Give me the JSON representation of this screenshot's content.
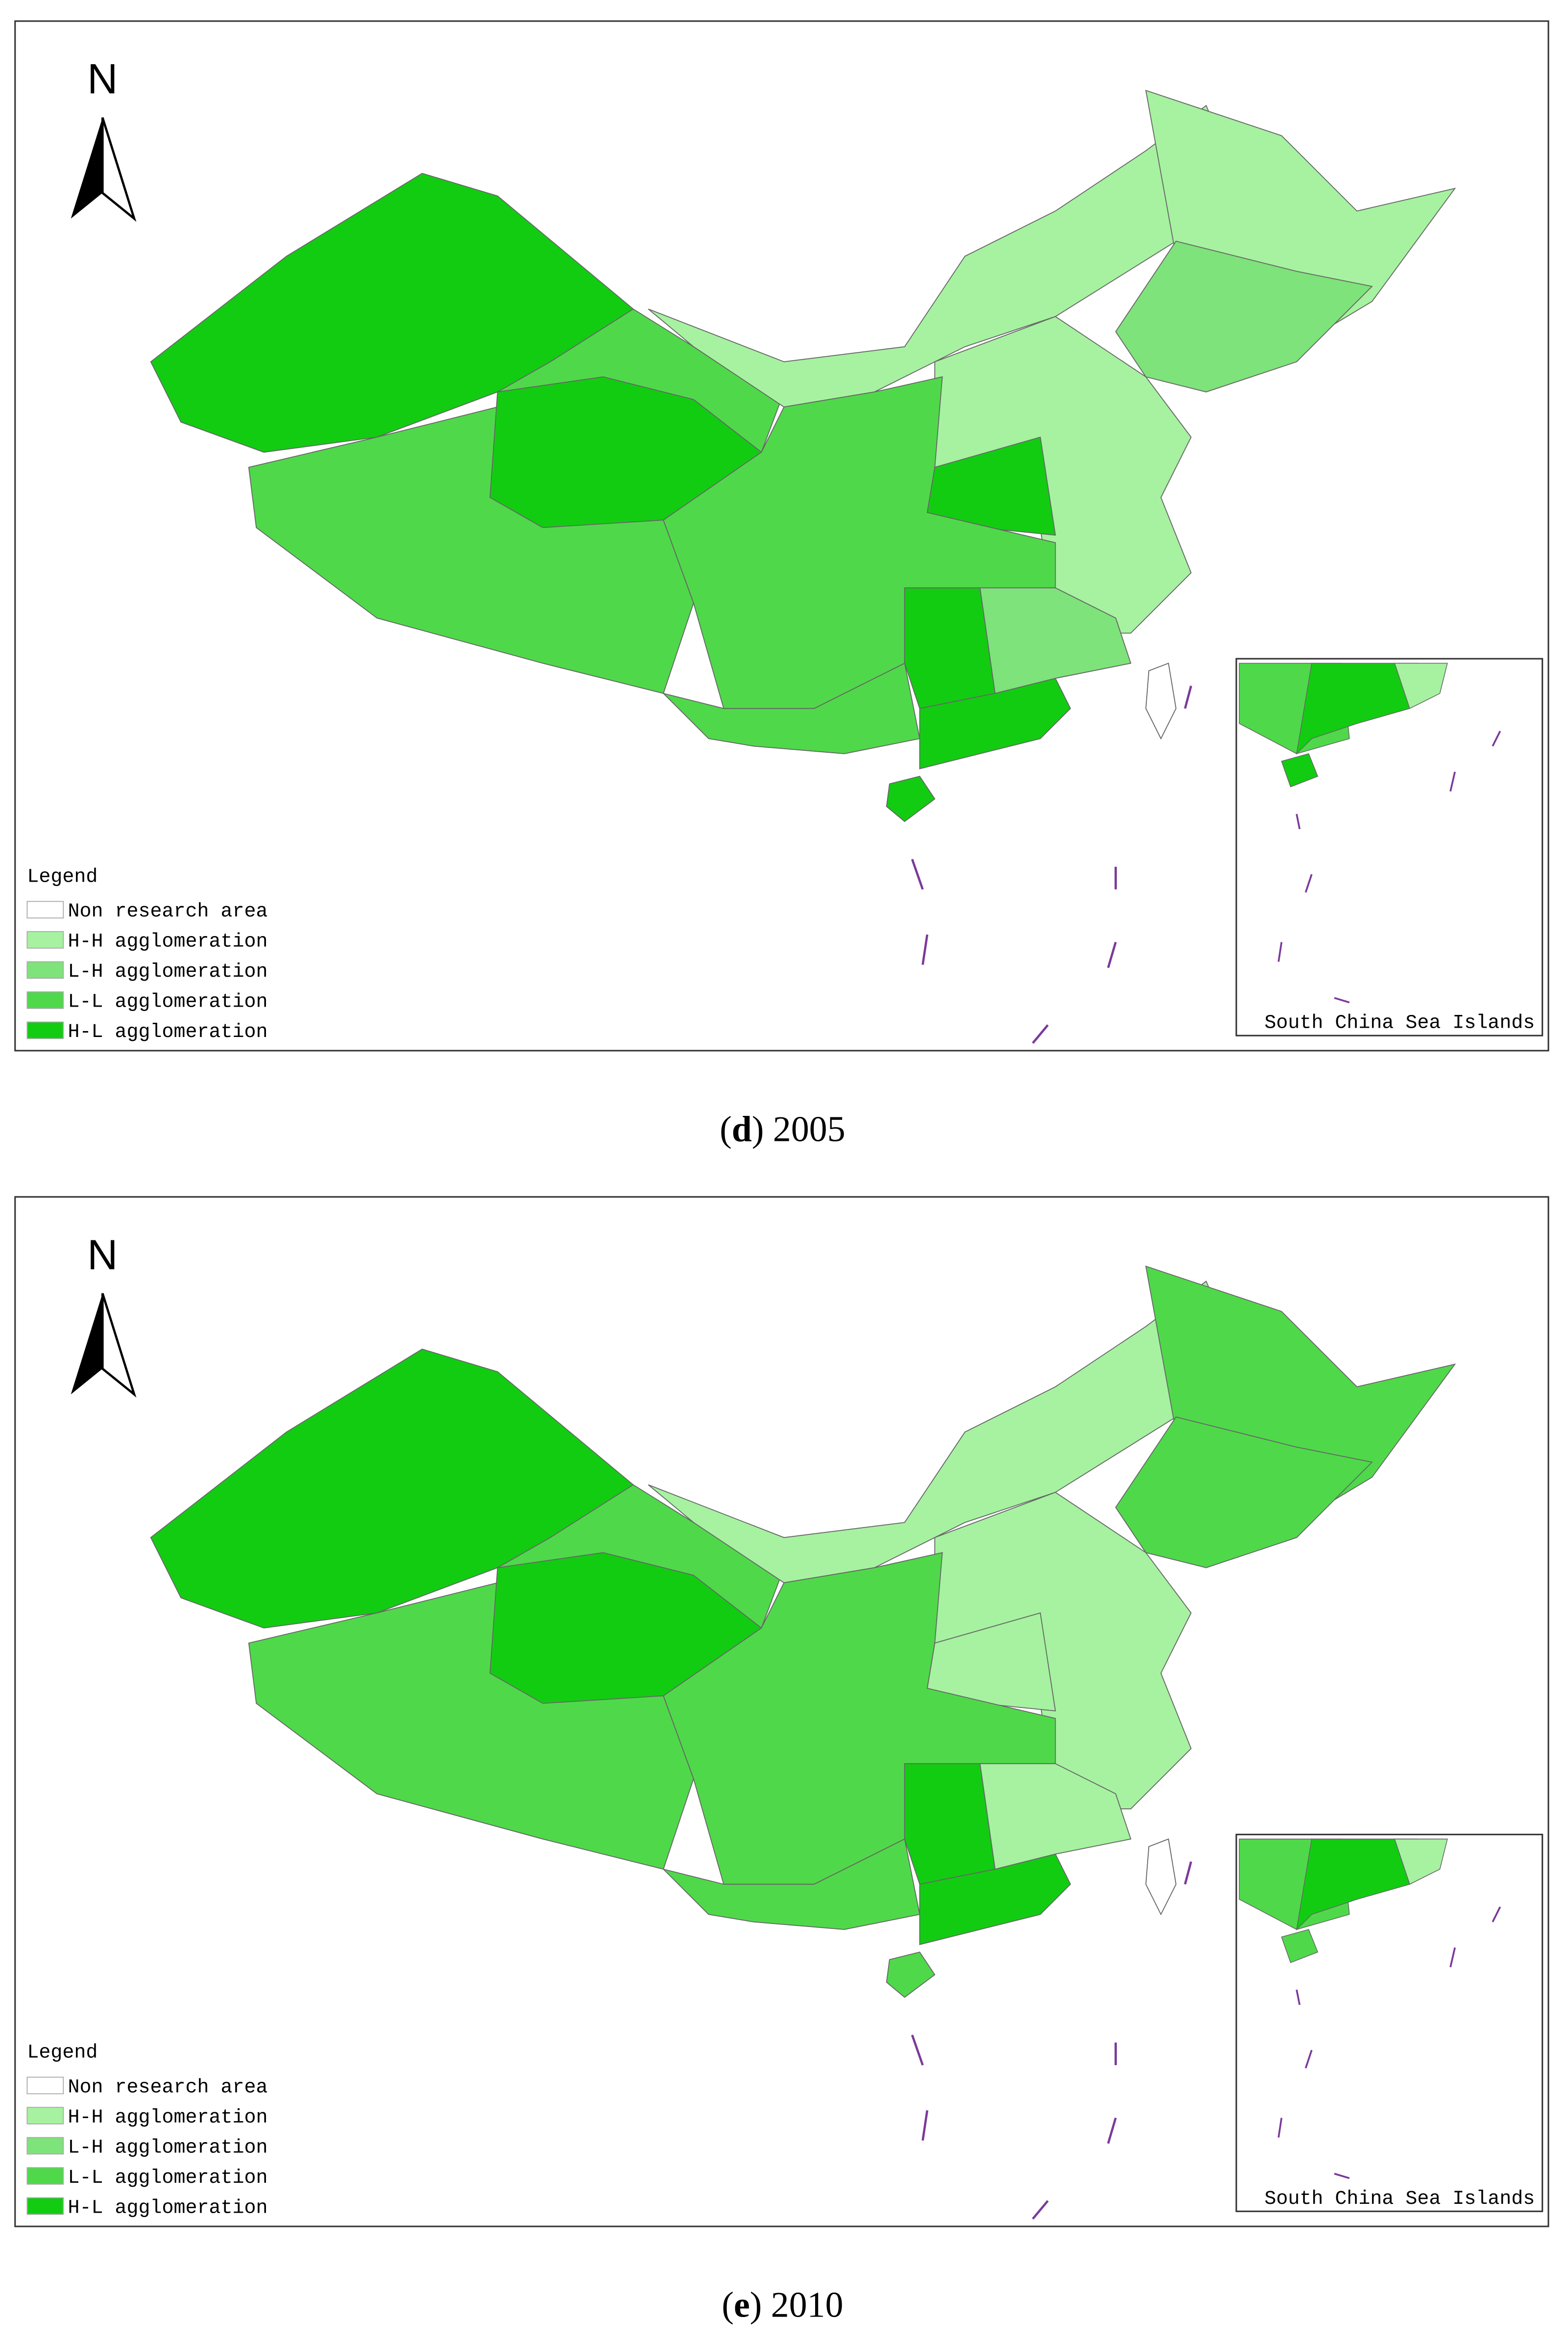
{
  "panels": [
    {
      "north": "N",
      "legend": {
        "title": "Legend",
        "items": [
          {
            "label": "Non research area",
            "color": "#ffffff"
          },
          {
            "label": "H-H agglomeration",
            "color": "#a6f2a0"
          },
          {
            "label": "L-H agglomeration",
            "color": "#7ee37a"
          },
          {
            "label": "L-L agglomeration",
            "color": "#4fd94a"
          },
          {
            "label": "H-L agglomeration",
            "color": "#12cc12"
          }
        ]
      },
      "inset_label": "South China Sea Islands",
      "caption_parts": [
        "(",
        "d",
        ") 2005"
      ]
    },
    {
      "north": "N",
      "legend": {
        "title": "Legend",
        "items": [
          {
            "label": "Non research area",
            "color": "#ffffff"
          },
          {
            "label": "H-H agglomeration",
            "color": "#a6f2a0"
          },
          {
            "label": "L-H agglomeration",
            "color": "#7ee37a"
          },
          {
            "label": "L-L agglomeration",
            "color": "#4fd94a"
          },
          {
            "label": "H-L agglomeration",
            "color": "#12cc12"
          }
        ]
      },
      "inset_label": "South China Sea Islands",
      "caption_parts": [
        "(",
        "e",
        ") 2010"
      ]
    }
  ]
}
